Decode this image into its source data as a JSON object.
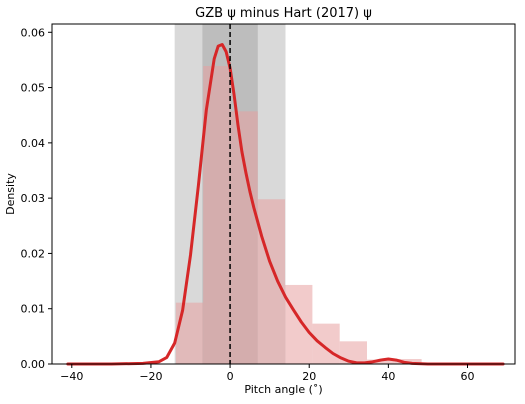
{
  "chart_data": {
    "type": "histogram-kde",
    "title": "GZB ψ minus Hart (2017) ψ",
    "xlabel": "Pitch angle (˚)",
    "ylabel": "Density",
    "xlim": [
      -45,
      72
    ],
    "ylim": [
      0,
      0.0615
    ],
    "xticks": [
      -40,
      -20,
      0,
      20,
      40,
      60
    ],
    "xtick_labels": [
      "−40",
      "−20",
      "0",
      "20",
      "40",
      "60"
    ],
    "yticks": [
      0,
      0.01,
      0.02,
      0.03,
      0.04,
      0.05,
      0.06
    ],
    "ytick_labels": [
      "0.00",
      "0.01",
      "0.02",
      "0.03",
      "0.04",
      "0.05",
      "0.06"
    ],
    "grid": false,
    "shaded_bands": [
      {
        "from": -14,
        "to": 14,
        "color": "#d9d9d9"
      },
      {
        "from": -7,
        "to": 7,
        "color": "#bdbdbd"
      }
    ],
    "reference_line": {
      "x": 0,
      "style": "dashed",
      "color": "#000000"
    },
    "histogram": {
      "color": "#e8a0a0",
      "bin_edges": [
        -41.3,
        -34.4,
        -27.5,
        -20.6,
        -13.7,
        -6.8,
        0.1,
        7.0,
        13.9,
        20.8,
        27.7,
        34.6,
        41.5,
        48.4,
        55.3,
        62.2,
        69.1
      ],
      "heights": [
        0.0,
        0.0,
        0.0,
        0.0,
        0.0111,
        0.0539,
        0.0457,
        0.0298,
        0.0143,
        0.0073,
        0.0041,
        0.0008,
        0.0009,
        0.0,
        0.0,
        0.0
      ]
    },
    "kde": {
      "color": "#d62728",
      "x": [
        -41,
        -30,
        -22,
        -18,
        -16,
        -14,
        -12,
        -10,
        -8,
        -6,
        -4,
        -3,
        -2,
        -1,
        0,
        1,
        2,
        3,
        4,
        5,
        6,
        8,
        10,
        12,
        14,
        16,
        18,
        20,
        22,
        24,
        26,
        28,
        30,
        32,
        34,
        36,
        38,
        40,
        42,
        44,
        46,
        50,
        60,
        69
      ],
      "y": [
        0.0,
        0.0,
        0.0001,
        0.0004,
        0.0012,
        0.0038,
        0.0097,
        0.0197,
        0.0323,
        0.0459,
        0.0552,
        0.0575,
        0.0578,
        0.0565,
        0.0535,
        0.0488,
        0.0432,
        0.0384,
        0.0346,
        0.0312,
        0.0283,
        0.0231,
        0.0186,
        0.015,
        0.0121,
        0.0098,
        0.0076,
        0.0057,
        0.0042,
        0.003,
        0.0019,
        0.0011,
        0.0005,
        0.0002,
        0.0002,
        0.0004,
        0.0007,
        0.0009,
        0.0007,
        0.0003,
        0.0001,
        0.0,
        0.0,
        0.0
      ]
    }
  }
}
